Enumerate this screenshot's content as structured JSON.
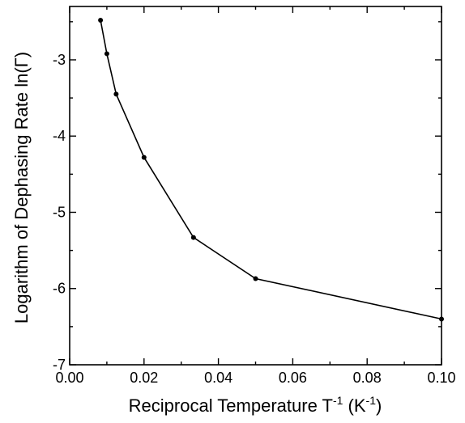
{
  "chart_data": {
    "type": "line",
    "xlabel": "Reciprocal Temperature T",
    "xlabel_sup": "-1",
    "xlabel_unit_open": " (K",
    "xlabel_unit_sup": "-1",
    "xlabel_unit_close": ")",
    "ylabel": "Logarithm of Dephasing Rate ln(Γ)",
    "xlim": [
      0.0,
      0.1
    ],
    "ylim": [
      -7,
      -2.3
    ],
    "xticks": [
      0.0,
      0.02,
      0.04,
      0.06,
      0.08,
      0.1
    ],
    "xtick_labels": [
      "0.00",
      "0.02",
      "0.04",
      "0.06",
      "0.08",
      "0.10"
    ],
    "yticks": [
      -7,
      -6,
      -5,
      -4,
      -3
    ],
    "ytick_labels": [
      "-7",
      "-6",
      "-5",
      "-4",
      "-3"
    ],
    "grid": false,
    "series": [
      {
        "x": [
          0.0083,
          0.01,
          0.0125,
          0.02,
          0.0333,
          0.05,
          0.1
        ],
        "y": [
          -2.48,
          -2.92,
          -3.45,
          -4.28,
          -5.33,
          -5.87,
          -6.4
        ]
      }
    ]
  }
}
